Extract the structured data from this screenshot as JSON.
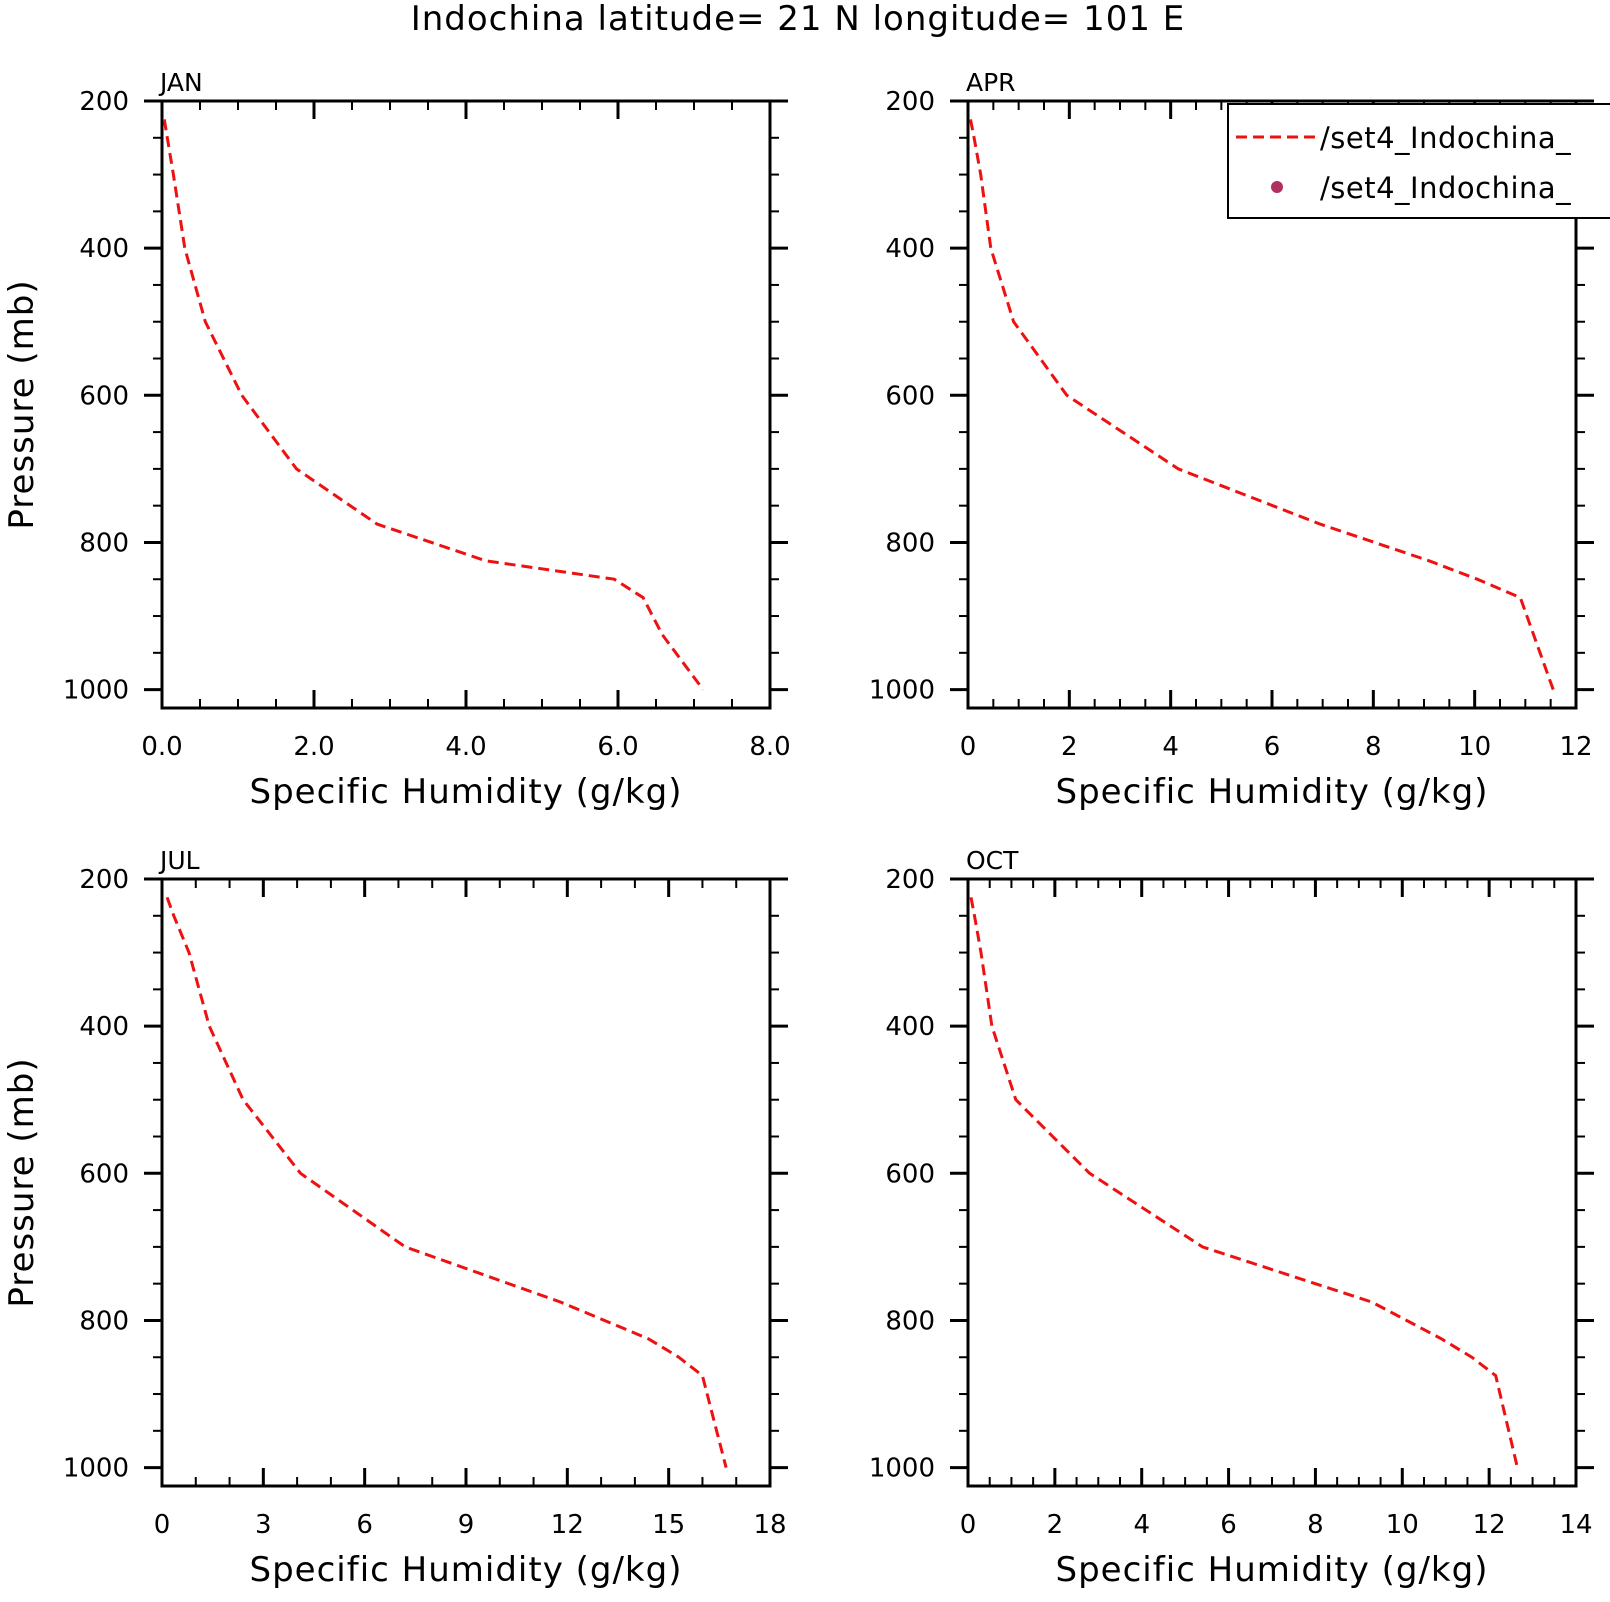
{
  "title": "Indochina  latitude= 21 N longitude= 101 E",
  "colors": {
    "model_line": "#ee1111",
    "obs_marker": "#b03060",
    "axes": "#000000"
  },
  "legend": {
    "placement": "top-right",
    "entries": [
      {
        "label": "/set4_Indochina_",
        "style": "dashed-line"
      },
      {
        "label": "/set4_Indochina_",
        "style": "dot-marker"
      }
    ]
  },
  "chart_data": [
    {
      "type": "line",
      "panel_label": "JAN",
      "xlabel": "Specific Humidity (g/kg)",
      "ylabel": "Pressure (mb)",
      "xlim": [
        0,
        8
      ],
      "ylim": [
        1025,
        200
      ],
      "x_ticks": [
        0,
        2,
        4,
        6,
        8
      ],
      "x_tick_labels": [
        "0.0",
        "2.0",
        "4.0",
        "6.0",
        "8.0"
      ],
      "x_minor_step": 0.5,
      "y_ticks": [
        200,
        400,
        600,
        800,
        1000
      ],
      "y_tick_labels": [
        "200",
        "400",
        "600",
        "800",
        "1000"
      ],
      "y_minor_step": 50,
      "series": [
        {
          "x": [
            0.03,
            0.07,
            0.15,
            0.3,
            0.57,
            1.05,
            1.77,
            2.83,
            4.26,
            5.95,
            6.33,
            6.58,
            7.12
          ],
          "y": [
            225,
            250,
            300,
            400,
            500,
            600,
            700,
            775,
            825,
            850,
            875,
            925,
            1000
          ]
        }
      ]
    },
    {
      "type": "line",
      "panel_label": "APR",
      "xlabel": "Specific Humidity (g/kg)",
      "ylabel": "",
      "xlim": [
        0,
        12
      ],
      "ylim": [
        1025,
        200
      ],
      "x_ticks": [
        0,
        2,
        4,
        6,
        8,
        10,
        12
      ],
      "x_tick_labels": [
        "0",
        "2",
        "4",
        "6",
        "8",
        "10",
        "12"
      ],
      "x_minor_step": 0.5,
      "y_ticks": [
        200,
        400,
        600,
        800,
        1000
      ],
      "y_tick_labels": [
        "200",
        "400",
        "600",
        "800",
        "1000"
      ],
      "y_minor_step": 50,
      "series": [
        {
          "x": [
            0.05,
            0.12,
            0.25,
            0.45,
            0.9,
            1.95,
            4.15,
            6.95,
            9.1,
            10.05,
            10.9,
            11.55
          ],
          "y": [
            225,
            250,
            300,
            400,
            500,
            600,
            700,
            775,
            825,
            850,
            875,
            1000
          ]
        }
      ]
    },
    {
      "type": "line",
      "panel_label": "JUL",
      "xlabel": "Specific Humidity (g/kg)",
      "ylabel": "Pressure (mb)",
      "xlim": [
        0,
        18
      ],
      "ylim": [
        1025,
        200
      ],
      "x_ticks": [
        0,
        3,
        6,
        9,
        12,
        15,
        18
      ],
      "x_tick_labels": [
        "0",
        "3",
        "6",
        "9",
        "12",
        "15",
        "18"
      ],
      "x_minor_step": 1,
      "y_ticks": [
        200,
        400,
        600,
        800,
        1000
      ],
      "y_tick_labels": [
        "200",
        "400",
        "600",
        "800",
        "1000"
      ],
      "y_minor_step": 50,
      "series": [
        {
          "x": [
            0.15,
            0.35,
            0.8,
            1.4,
            2.4,
            4.1,
            7.2,
            11.8,
            14.4,
            15.3,
            16.0,
            16.7
          ],
          "y": [
            225,
            250,
            300,
            400,
            500,
            600,
            700,
            775,
            825,
            850,
            875,
            1000
          ]
        }
      ]
    },
    {
      "type": "line",
      "panel_label": "OCT",
      "xlabel": "Specific Humidity (g/kg)",
      "ylabel": "",
      "xlim": [
        0,
        14
      ],
      "ylim": [
        1025,
        200
      ],
      "x_ticks": [
        0,
        2,
        4,
        6,
        8,
        10,
        12,
        14
      ],
      "x_tick_labels": [
        "0",
        "2",
        "4",
        "6",
        "8",
        "10",
        "12",
        "14"
      ],
      "x_minor_step": 0.5,
      "y_ticks": [
        200,
        400,
        600,
        800,
        1000
      ],
      "y_tick_labels": [
        "200",
        "400",
        "600",
        "800",
        "1000"
      ],
      "y_minor_step": 50,
      "series": [
        {
          "x": [
            0.07,
            0.15,
            0.3,
            0.55,
            1.1,
            2.8,
            5.4,
            9.3,
            10.9,
            11.6,
            12.15,
            12.65
          ],
          "y": [
            225,
            250,
            300,
            400,
            500,
            600,
            700,
            775,
            825,
            850,
            875,
            1000
          ]
        }
      ]
    }
  ]
}
